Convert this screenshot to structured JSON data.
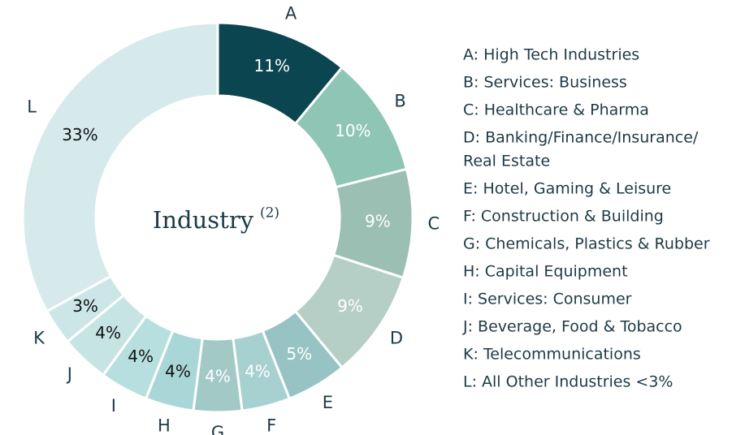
{
  "chart_data": {
    "type": "donut",
    "center_label": "Industry",
    "center_note": "(2)",
    "categories": [
      "A",
      "B",
      "C",
      "D",
      "E",
      "F",
      "G",
      "H",
      "I",
      "J",
      "K",
      "L"
    ],
    "values": [
      11,
      10,
      9,
      9,
      5,
      4,
      4,
      4,
      4,
      4,
      3,
      33
    ],
    "value_labels": [
      "11%",
      "10%",
      "9%",
      "9%",
      "5%",
      "4%",
      "4%",
      "4%",
      "4%",
      "4%",
      "3%",
      "33%"
    ],
    "colors": [
      "#0b4650",
      "#8ec5b5",
      "#9cbfb3",
      "#b5cfc6",
      "#97c3c4",
      "#a6d1d0",
      "#a3c9c7",
      "#a9d7d8",
      "#b7dfdf",
      "#c6e4e4",
      "#cce6e7",
      "#d6eaeb"
    ],
    "label_colors": [
      "#ffffff",
      "#ffffff",
      "#ffffff",
      "#ffffff",
      "#ffffff",
      "#ffffff",
      "#ffffff",
      "#111111",
      "#111111",
      "#111111",
      "#111111",
      "#111111"
    ],
    "legend": [
      [
        "A: High Tech Industries"
      ],
      [
        "B: Services: Business"
      ],
      [
        "C: Healthcare & Pharma"
      ],
      [
        "D: Banking/Finance/Insurance/",
        "Real Estate"
      ],
      [
        "E: Hotel, Gaming & Leisure"
      ],
      [
        "F: Construction & Building"
      ],
      [
        "G: Chemicals, Plastics & Rubber"
      ],
      [
        "H: Capital Equipment"
      ],
      [
        "I: Services: Consumer"
      ],
      [
        "J: Beverage, Food & Tobacco"
      ],
      [
        "K: Telecommunications"
      ],
      [
        "L: All Other Industries <3%"
      ]
    ]
  }
}
